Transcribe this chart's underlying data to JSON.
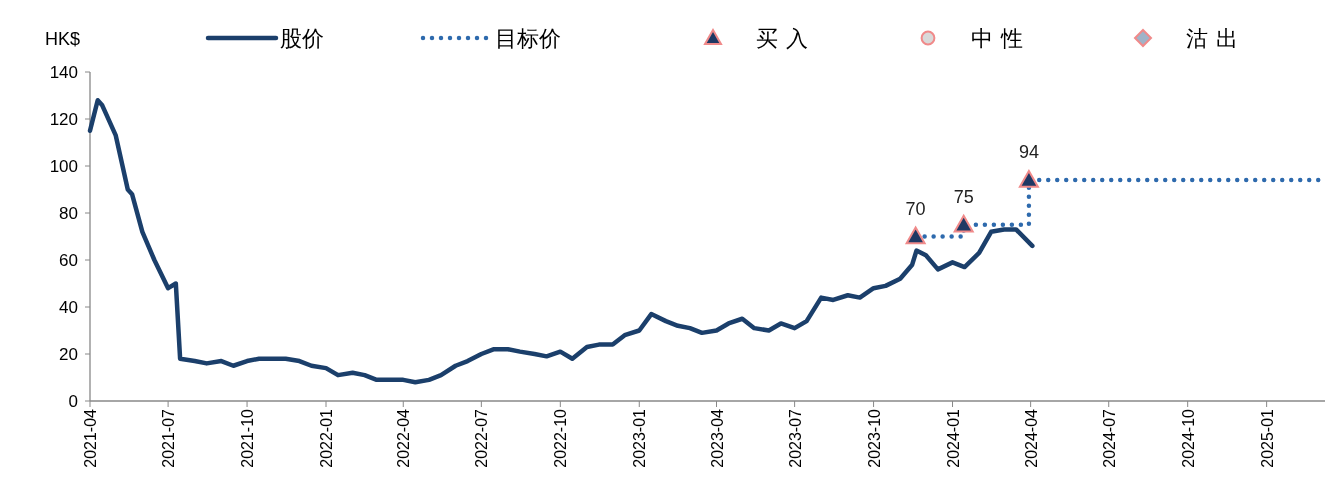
{
  "chart_data": {
    "type": "line",
    "ylabel": "HK$",
    "legend": "top",
    "grid": false,
    "xlim": [
      "2021-04-01",
      "2025-03-10"
    ],
    "ylim": [
      0,
      140
    ],
    "yticks": [
      0,
      20,
      40,
      60,
      80,
      100,
      120,
      140
    ],
    "xticks": [
      "2021-04",
      "2021-07",
      "2021-10",
      "2022-01",
      "2022-04",
      "2022-07",
      "2022-10",
      "2023-01",
      "2023-04",
      "2023-07",
      "2023-10",
      "2024-01",
      "2024-04",
      "2024-07",
      "2024-10",
      "2025-01"
    ],
    "series": [
      {
        "name": "股价",
        "color": "#1b3f6b",
        "line_style": "solid",
        "x": [
          "2021-04-01",
          "2021-04-10",
          "2021-04-15",
          "2021-05-01",
          "2021-05-15",
          "2021-05-20",
          "2021-06-01",
          "2021-06-15",
          "2021-07-01",
          "2021-07-10",
          "2021-07-15",
          "2021-08-01",
          "2021-08-15",
          "2021-09-01",
          "2021-09-15",
          "2021-10-01",
          "2021-10-15",
          "2021-11-01",
          "2021-11-15",
          "2021-12-01",
          "2021-12-15",
          "2022-01-01",
          "2022-01-15",
          "2022-02-01",
          "2022-02-15",
          "2022-03-01",
          "2022-03-15",
          "2022-04-01",
          "2022-04-15",
          "2022-05-01",
          "2022-05-15",
          "2022-06-01",
          "2022-06-15",
          "2022-07-01",
          "2022-07-15",
          "2022-08-01",
          "2022-08-15",
          "2022-09-01",
          "2022-09-15",
          "2022-10-01",
          "2022-10-15",
          "2022-11-01",
          "2022-11-15",
          "2022-12-01",
          "2022-12-15",
          "2023-01-01",
          "2023-01-15",
          "2023-02-01",
          "2023-02-15",
          "2023-03-01",
          "2023-03-15",
          "2023-04-01",
          "2023-04-15",
          "2023-05-01",
          "2023-05-15",
          "2023-06-01",
          "2023-06-15",
          "2023-07-01",
          "2023-07-15",
          "2023-08-01",
          "2023-08-15",
          "2023-09-01",
          "2023-09-15",
          "2023-10-01",
          "2023-10-15",
          "2023-11-01",
          "2023-11-15",
          "2023-11-20",
          "2023-12-01",
          "2023-12-15",
          "2024-01-01",
          "2024-01-15",
          "2024-02-01",
          "2024-02-15",
          "2024-03-01",
          "2024-03-15",
          "2024-04-03"
        ],
        "values": [
          115,
          128,
          126,
          113,
          90,
          88,
          72,
          60,
          48,
          50,
          18,
          17,
          16,
          17,
          15,
          17,
          18,
          18,
          18,
          17,
          15,
          14,
          11,
          12,
          11,
          9,
          9,
          9,
          8,
          9,
          11,
          15,
          17,
          20,
          22,
          22,
          21,
          20,
          19,
          21,
          18,
          23,
          24,
          24,
          28,
          30,
          37,
          34,
          32,
          31,
          29,
          30,
          33,
          35,
          31,
          30,
          33,
          31,
          34,
          44,
          43,
          45,
          44,
          48,
          49,
          52,
          58,
          64,
          62,
          56,
          59,
          57,
          63,
          72,
          73,
          73,
          66
        ]
      },
      {
        "name": "目标价",
        "type": "step",
        "color": "#2e6aad",
        "line_style": "dotted",
        "x": [
          "2023-11-19",
          "2024-01-14",
          "2024-03-30",
          "2025-03-10"
        ],
        "values": [
          70,
          75,
          94,
          94
        ]
      },
      {
        "name": "买入",
        "type": "scatter",
        "color": "#1f3864",
        "marker": "triangle",
        "x": [
          "2023-11-19",
          "2024-01-14",
          "2024-03-30"
        ],
        "values": [
          70,
          75,
          94
        ],
        "value_labels": [
          "70",
          "75",
          "94"
        ]
      },
      {
        "name": "中性",
        "type": "scatter",
        "color": "#d9d9d9",
        "marker": "circle"
      },
      {
        "name": "沽出",
        "type": "scatter",
        "color": "#9fb3c8",
        "marker": "diamond"
      }
    ]
  }
}
